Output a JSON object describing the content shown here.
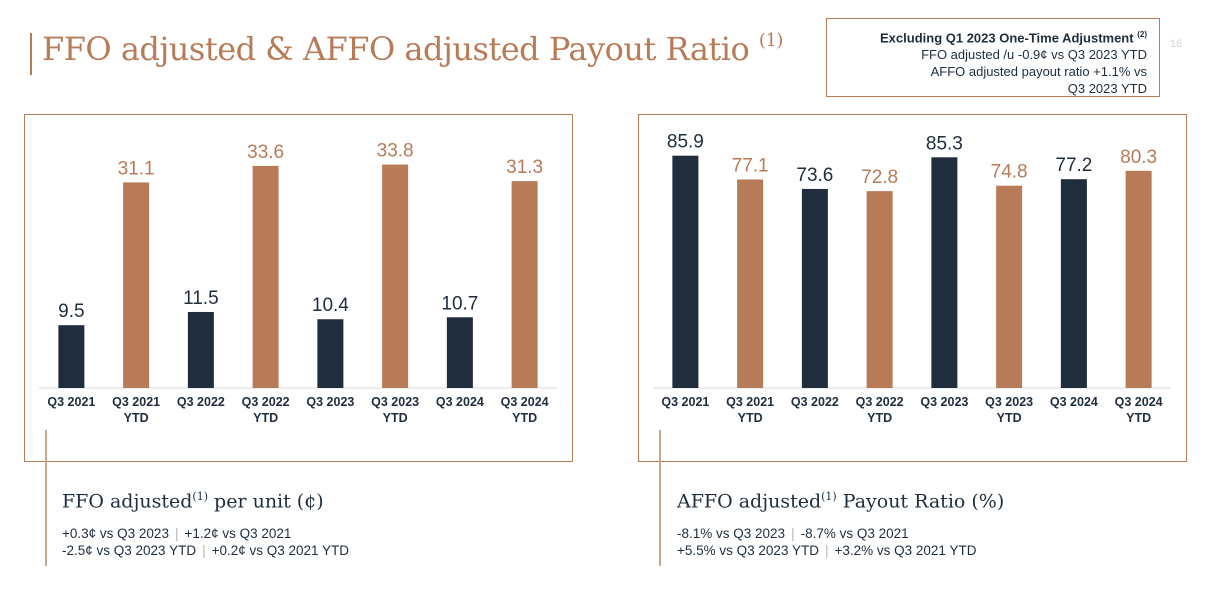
{
  "header": {
    "title": "FFO adjusted & AFFO adjusted Payout Ratio",
    "title_sup": "(1)",
    "page_number": "16"
  },
  "note": {
    "title": "Excluding Q1 2023 One-Time Adjustment",
    "title_sup": "(2)",
    "line1": "FFO adjusted /u -0.9¢  vs Q3 2023 YTD",
    "line2": "AFFO adjusted payout ratio +1.1% vs",
    "line3": "Q3 2023 YTD"
  },
  "colors": {
    "navy": "#1f2d3d",
    "copper": "#b87b57"
  },
  "left_panel": {
    "title_main": "FFO adjusted",
    "title_sup": "(1)",
    "title_tail": "per unit (¢)",
    "stats": [
      {
        "a": "+0.3¢ vs Q3 2023",
        "b": "+1.2¢ vs Q3 2021"
      },
      {
        "a": "-2.5¢ vs Q3 2023 YTD",
        "b": "+0.2¢ vs Q3 2021 YTD"
      }
    ]
  },
  "right_panel": {
    "title_main": "AFFO adjusted",
    "title_sup": "(1)",
    "title_tail": "Payout Ratio (%)",
    "stats": [
      {
        "a": "-8.1% vs Q3 2023",
        "b": "-8.7% vs Q3 2021"
      },
      {
        "a": "+5.5% vs Q3 2023 YTD",
        "b": "+3.2% vs Q3 2021 YTD"
      }
    ]
  },
  "chart_data": [
    {
      "type": "bar",
      "categories": [
        [
          "Q3 2021"
        ],
        [
          "Q3 2021",
          "YTD"
        ],
        [
          "Q3 2022"
        ],
        [
          "Q3 2022",
          "YTD"
        ],
        [
          "Q3 2023"
        ],
        [
          "Q3 2023",
          "YTD"
        ],
        [
          "Q3 2024"
        ],
        [
          "Q3 2024",
          "YTD"
        ]
      ],
      "values": [
        9.5,
        31.1,
        11.5,
        33.6,
        10.4,
        33.8,
        10.7,
        31.3
      ],
      "labels": [
        "9.5",
        "31.1",
        "11.5",
        "33.6",
        "10.4",
        "33.8",
        "10.7",
        "31.3"
      ],
      "bar_colors": [
        "navy",
        "copper",
        "navy",
        "copper",
        "navy",
        "copper",
        "navy",
        "copper"
      ],
      "ylim": [
        0,
        36
      ]
    },
    {
      "type": "bar",
      "categories": [
        [
          "Q3 2021"
        ],
        [
          "Q3 2021",
          "YTD"
        ],
        [
          "Q3 2022"
        ],
        [
          "Q3 2022",
          "YTD"
        ],
        [
          "Q3 2023"
        ],
        [
          "Q3 2023",
          "YTD"
        ],
        [
          "Q3 2024"
        ],
        [
          "Q3 2024",
          "YTD"
        ]
      ],
      "values": [
        85.9,
        77.1,
        73.6,
        72.8,
        85.3,
        74.8,
        77.2,
        80.3
      ],
      "labels": [
        "85.9",
        "77.1",
        "73.6",
        "72.8",
        "85.3",
        "74.8",
        "77.2",
        "80.3"
      ],
      "bar_colors": [
        "navy",
        "copper",
        "navy",
        "copper",
        "navy",
        "copper",
        "navy",
        "copper"
      ],
      "ylim": [
        0,
        88
      ]
    }
  ]
}
